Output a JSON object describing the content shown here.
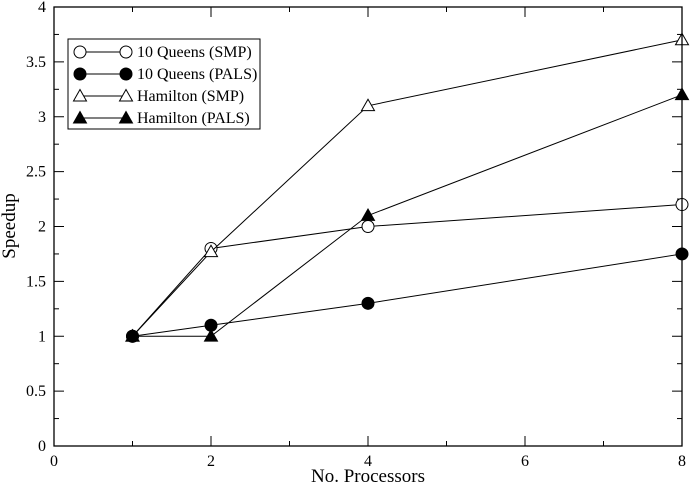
{
  "chart_data": {
    "type": "line",
    "title": "",
    "xlabel": "No. Processors",
    "ylabel": "Speedup",
    "xlim": [
      0,
      8
    ],
    "ylim": [
      0,
      4
    ],
    "grid": false,
    "legend_position": "top-left",
    "x_ticks": [
      "0",
      "2",
      "4",
      "6",
      "8"
    ],
    "y_ticks": [
      "0",
      "0.5",
      "1",
      "1.5",
      "2",
      "2.5",
      "3",
      "3.5",
      "4"
    ],
    "series": [
      {
        "name": "10 Queens (SMP)",
        "marker": "circle-open",
        "x": [
          1,
          2,
          4,
          8
        ],
        "values": [
          1.0,
          1.8,
          2.0,
          2.2
        ]
      },
      {
        "name": "10 Queens (PALS)",
        "marker": "circle-filled",
        "x": [
          1,
          2,
          4,
          8
        ],
        "values": [
          1.0,
          1.1,
          1.3,
          1.75
        ]
      },
      {
        "name": "Hamilton (SMP)",
        "marker": "triangle-open",
        "x": [
          1,
          2,
          4,
          8
        ],
        "values": [
          1.0,
          1.77,
          3.1,
          3.7
        ]
      },
      {
        "name": "Hamilton (PALS)",
        "marker": "triangle-filled",
        "x": [
          1,
          2,
          4,
          8
        ],
        "values": [
          1.0,
          1.0,
          2.1,
          3.2
        ]
      }
    ]
  }
}
